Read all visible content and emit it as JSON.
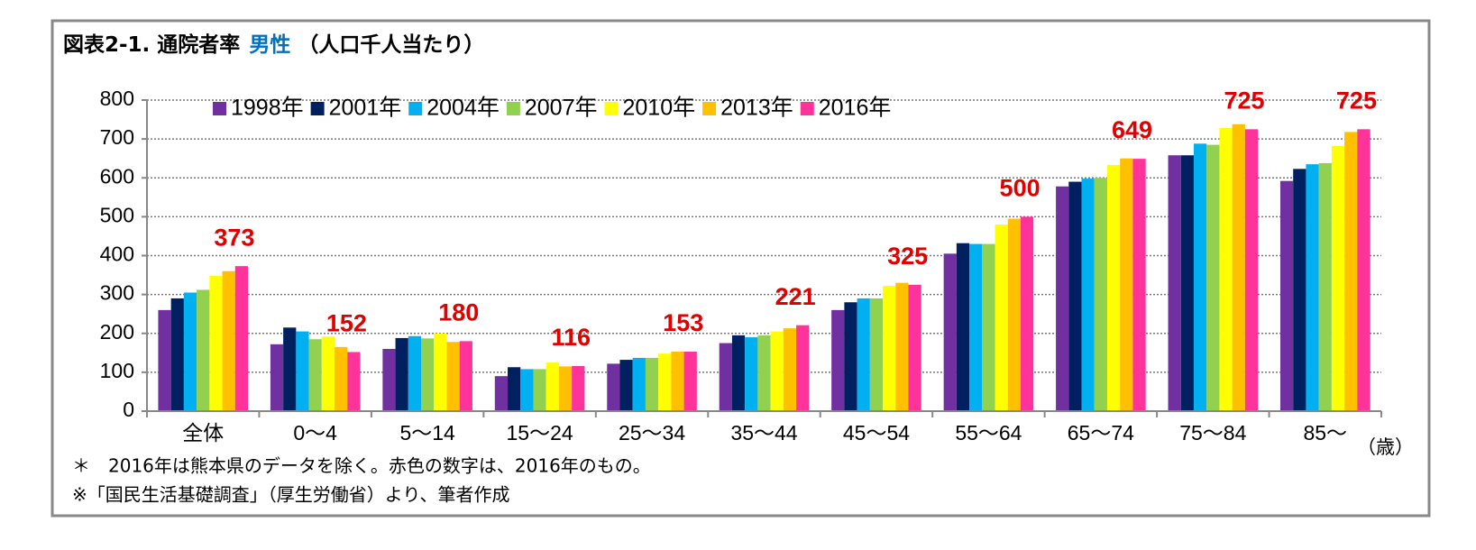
{
  "chart_data": {
    "type": "bar",
    "title": "図表2-1. 通院者率",
    "title_highlight": "男性",
    "title_suffix": "（人口千人当たり）",
    "x_unit": "（歳）",
    "notes": [
      "＊　2016年は熊本県のデータを除く。赤色の数字は、2016年のもの。",
      "※「国民生活基礎調査」（厚生労働省）より、筆者作成"
    ],
    "categories": [
      "全体",
      "0～4",
      "5～14",
      "15～24",
      "25～34",
      "35～44",
      "45～54",
      "55～64",
      "65～74",
      "75～84",
      "85～"
    ],
    "series": [
      {
        "name": "1998年",
        "color": "#7030a0",
        "values": [
          260,
          172,
          160,
          90,
          122,
          175,
          260,
          405,
          578,
          658,
          592
        ]
      },
      {
        "name": "2001年",
        "color": "#002060",
        "values": [
          290,
          215,
          188,
          113,
          132,
          195,
          280,
          432,
          590,
          658,
          623
        ]
      },
      {
        "name": "2004年",
        "color": "#00b0f0",
        "values": [
          305,
          205,
          193,
          108,
          137,
          190,
          290,
          430,
          598,
          688,
          635
        ]
      },
      {
        "name": "2007年",
        "color": "#92d050",
        "values": [
          312,
          185,
          187,
          108,
          137,
          195,
          290,
          430,
          600,
          685,
          638
        ]
      },
      {
        "name": "2010年",
        "color": "#ffff00",
        "values": [
          348,
          192,
          200,
          125,
          148,
          205,
          322,
          480,
          633,
          728,
          682
        ]
      },
      {
        "name": "2013年",
        "color": "#ffc000",
        "values": [
          360,
          165,
          178,
          115,
          153,
          213,
          330,
          495,
          650,
          738,
          718
        ]
      },
      {
        "name": "2016年",
        "color": "#ff3399",
        "values": [
          373,
          152,
          180,
          116,
          153,
          221,
          325,
          500,
          649,
          725,
          725
        ]
      }
    ],
    "labeled_series": 6,
    "ylim": [
      0,
      800
    ],
    "yticks": [
      0,
      100,
      200,
      300,
      400,
      500,
      600,
      700,
      800
    ],
    "grid": true,
    "legend": "top-left"
  }
}
